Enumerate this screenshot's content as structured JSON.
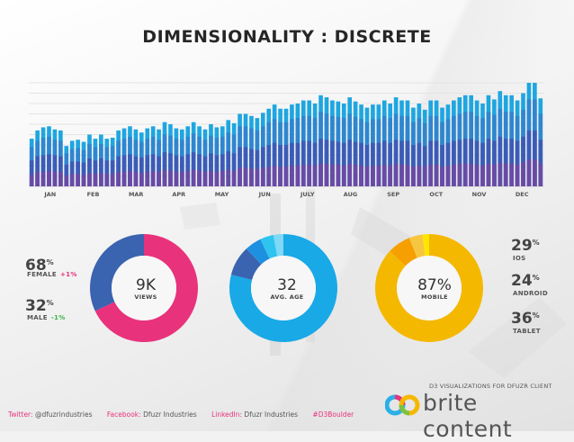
{
  "title": "DIMENSIONALITY : DISCRETE",
  "colors": {
    "bar_light": "#1ea6e0",
    "bar_mid": "#3d5bb6",
    "bar_dark": "#6a4aa5",
    "pink": "#e8327c",
    "navy": "#3a63b0",
    "cyan": "#19a9e6",
    "yellow": "#f5b800",
    "orange": "#f5a000"
  },
  "chart_data": {
    "type": "bar",
    "title": "DIMENSIONALITY : DISCRETE",
    "month_labels": [
      "JAN",
      "FEB",
      "MAR",
      "APR",
      "MAY",
      "JUN",
      "JULY",
      "AUG",
      "SEP",
      "OCT",
      "NOV",
      "DEC"
    ],
    "ylim": [
      0,
      100
    ],
    "series": [
      {
        "name": "bottom",
        "values": [
          11,
          14,
          14,
          15,
          14,
          14,
          10,
          12,
          12,
          11,
          13,
          12,
          13,
          12,
          12,
          14,
          14,
          15,
          14,
          13,
          14,
          15,
          14,
          16,
          15,
          14,
          14,
          15,
          16,
          15,
          14,
          15,
          14,
          15,
          16,
          15,
          18,
          18,
          17,
          17,
          18,
          19,
          20,
          19,
          19,
          20,
          20,
          21,
          21,
          20,
          22,
          22,
          21,
          21,
          20,
          22,
          21,
          20,
          19,
          20,
          20,
          21,
          20,
          22,
          21,
          21,
          19,
          20,
          19,
          21,
          21,
          19,
          20,
          21,
          22,
          22,
          22,
          21,
          20,
          22,
          21,
          23,
          22,
          22,
          21,
          23,
          26,
          26,
          22
        ]
      },
      {
        "name": "middle",
        "values": [
          25,
          29,
          30,
          31,
          30,
          29,
          21,
          24,
          24,
          23,
          27,
          25,
          27,
          25,
          25,
          29,
          30,
          31,
          29,
          28,
          30,
          31,
          29,
          33,
          32,
          30,
          29,
          31,
          33,
          31,
          29,
          32,
          30,
          31,
          34,
          32,
          38,
          38,
          36,
          35,
          38,
          40,
          42,
          40,
          40,
          42,
          42,
          44,
          44,
          42,
          46,
          45,
          44,
          43,
          42,
          45,
          43,
          42,
          40,
          42,
          42,
          44,
          42,
          45,
          44,
          44,
          40,
          42,
          39,
          44,
          44,
          40,
          42,
          44,
          45,
          46,
          46,
          44,
          42,
          46,
          44,
          48,
          46,
          46,
          44,
          48,
          54,
          54,
          45
        ]
      },
      {
        "name": "top",
        "values": [
          38,
          44,
          47,
          48,
          45,
          44,
          32,
          36,
          37,
          35,
          41,
          38,
          41,
          38,
          39,
          44,
          46,
          48,
          45,
          43,
          46,
          48,
          45,
          50,
          49,
          46,
          45,
          48,
          51,
          48,
          45,
          49,
          47,
          48,
          52,
          50,
          58,
          58,
          56,
          54,
          58,
          62,
          65,
          62,
          62,
          65,
          66,
          68,
          68,
          66,
          72,
          70,
          68,
          67,
          66,
          70,
          67,
          65,
          62,
          65,
          65,
          68,
          66,
          70,
          68,
          68,
          62,
          66,
          61,
          68,
          68,
          62,
          65,
          68,
          70,
          72,
          72,
          68,
          66,
          72,
          69,
          75,
          72,
          72,
          68,
          74,
          84,
          84,
          70
        ]
      },
      {
        "name": "total",
        "values": [
          46,
          54,
          57,
          58,
          55,
          54,
          39,
          44,
          45,
          43,
          50,
          46,
          50,
          46,
          47,
          54,
          56,
          58,
          55,
          52,
          56,
          58,
          55,
          62,
          60,
          56,
          55,
          58,
          62,
          58,
          55,
          60,
          57,
          58,
          64,
          61,
          70,
          70,
          68,
          66,
          71,
          75,
          79,
          75,
          75,
          79,
          80,
          83,
          83,
          80,
          88,
          86,
          83,
          82,
          80,
          86,
          82,
          79,
          76,
          79,
          79,
          83,
          80,
          86,
          83,
          83,
          76,
          80,
          74,
          83,
          83,
          76,
          79,
          83,
          86,
          88,
          88,
          83,
          80,
          88,
          84,
          92,
          88,
          88,
          83,
          90,
          102,
          102,
          85
        ]
      }
    ],
    "donuts": [
      {
        "name": "gender",
        "center_value": "9K",
        "center_label": "VIEWS",
        "segments": [
          {
            "label": "FEMALE",
            "value": 68
          },
          {
            "label": "MALE",
            "value": 32
          }
        ]
      },
      {
        "name": "age",
        "center_value": "32",
        "center_label": "AVG. AGE",
        "segments": [
          {
            "value": 79
          },
          {
            "value": 9
          },
          {
            "value": 5
          },
          {
            "value": 4
          },
          {
            "value": 3
          }
        ]
      },
      {
        "name": "mobile",
        "center_value": "87%",
        "center_label": "MOBILE",
        "segments": [
          {
            "value": 87
          },
          {
            "value": 7
          },
          {
            "value": 4
          },
          {
            "value": 2
          }
        ]
      }
    ]
  },
  "gender": {
    "female_pct": "68",
    "female_label": "FEMALE",
    "female_delta": "+1%",
    "male_pct": "32",
    "male_label": "MALE",
    "male_delta": "-1%",
    "pct_sign": "%"
  },
  "donut1": {
    "value": "9K",
    "label": "VIEWS"
  },
  "donut2": {
    "value": "32",
    "label": "AVG. AGE"
  },
  "donut3": {
    "value": "87%",
    "label": "MOBILE"
  },
  "devices": {
    "ios_pct": "29",
    "ios_label": "IOS",
    "android_pct": "24",
    "android_label": "ANDROID",
    "tablet_pct": "36",
    "tablet_label": "TABLET",
    "pct_sign": "%"
  },
  "footer": {
    "twitter_label": "Twitter:",
    "twitter_value": "@dfuzrindustries",
    "facebook_label": "Facebook:",
    "facebook_value": "Dfuzr Industries",
    "linkedin_label": "LinkedIn:",
    "linkedin_value": "Dfuzr Industries",
    "hashtag": "#D3Boulder"
  },
  "brand": {
    "tagline": "D3 VISUALIZATIONS FOR DFUZR CLIENT",
    "name": "brite content"
  }
}
